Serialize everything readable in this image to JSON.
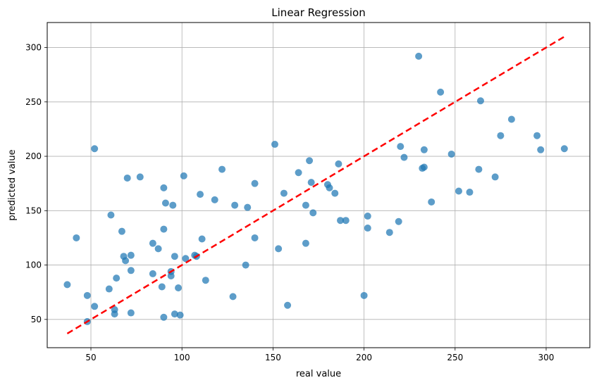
{
  "chart_data": {
    "type": "scatter",
    "title": "Linear Regression",
    "xlabel": "real value",
    "ylabel": "predicted value",
    "xlim": [
      26,
      324
    ],
    "ylim": [
      24,
      323
    ],
    "xticks": [
      50,
      100,
      150,
      200,
      250,
      300
    ],
    "yticks": [
      50,
      100,
      150,
      200,
      250,
      300
    ],
    "grid": true,
    "colors": {
      "points": "#1f77b4",
      "fit_line": "#ff0000",
      "grid": "#b0b0b0"
    },
    "series": [
      {
        "type": "scatter",
        "x": [
          37,
          42,
          48,
          48,
          52,
          52,
          60,
          61,
          63,
          63,
          64,
          67,
          68,
          69,
          70,
          72,
          72,
          72,
          77,
          84,
          84,
          87,
          89,
          90,
          90,
          90,
          91,
          94,
          94,
          95,
          96,
          96,
          98,
          99,
          101,
          102,
          107,
          108,
          110,
          111,
          113,
          118,
          122,
          128,
          129,
          135,
          136,
          140,
          140,
          151,
          153,
          156,
          158,
          164,
          168,
          168,
          170,
          171,
          172,
          180,
          181,
          184,
          186,
          187,
          190,
          200,
          202,
          202,
          214,
          219,
          220,
          222,
          230,
          232,
          233,
          233,
          237,
          242,
          248,
          252,
          258,
          263,
          264,
          272,
          275,
          281,
          295,
          297,
          310
        ],
        "y": [
          82,
          125,
          72,
          48,
          62,
          207,
          78,
          146,
          59,
          55,
          88,
          131,
          108,
          104,
          180,
          95,
          56,
          109,
          181,
          120,
          92,
          115,
          80,
          171,
          133,
          52,
          157,
          94,
          90,
          155,
          108,
          55,
          79,
          54,
          182,
          106,
          109,
          108,
          165,
          124,
          86,
          160,
          188,
          71,
          155,
          100,
          153,
          125,
          175,
          211,
          115,
          166,
          63,
          185,
          120,
          155,
          196,
          176,
          148,
          174,
          171,
          166,
          193,
          141,
          141,
          72,
          145,
          134,
          130,
          140,
          209,
          199,
          292,
          189,
          206,
          190,
          158,
          259,
          202,
          168,
          167,
          188,
          251,
          181,
          219,
          234,
          219,
          206,
          207
        ]
      },
      {
        "type": "line",
        "style": "dashed",
        "x": [
          37,
          310
        ],
        "y": [
          37,
          310
        ]
      }
    ]
  }
}
